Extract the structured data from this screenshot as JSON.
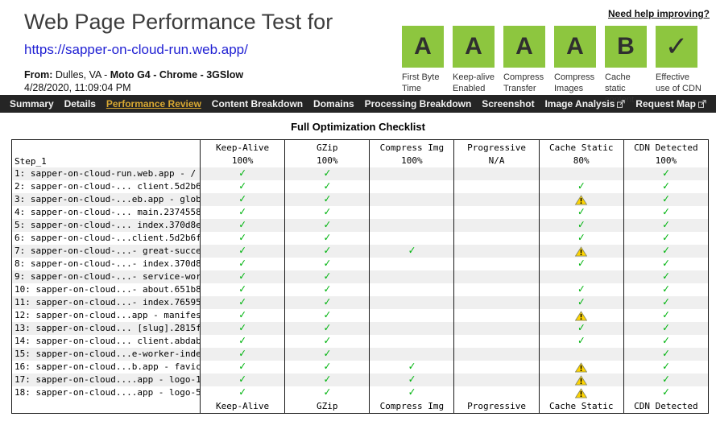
{
  "header": {
    "title": "Web Page Performance Test for",
    "url": "https://sapper-on-cloud-run.web.app/",
    "from_label": "From:",
    "from_location": "Dulles, VA -",
    "from_details": "Moto G4 - Chrome - 3GSlow",
    "timestamp": "4/28/2020, 11:09:04 PM",
    "help_link": "Need help improving?"
  },
  "grades": [
    {
      "grade": "A",
      "label": "First Byte Time",
      "is_check": false
    },
    {
      "grade": "A",
      "label": "Keep-alive Enabled",
      "is_check": false
    },
    {
      "grade": "A",
      "label": "Compress Transfer",
      "is_check": false
    },
    {
      "grade": "A",
      "label": "Compress Images",
      "is_check": false
    },
    {
      "grade": "B",
      "label": "Cache static content",
      "is_check": false
    },
    {
      "grade": "✓",
      "label": "Effective use of CDN",
      "is_check": true
    }
  ],
  "nav": {
    "items": [
      {
        "label": "Summary",
        "active": false,
        "external": false
      },
      {
        "label": "Details",
        "active": false,
        "external": false
      },
      {
        "label": "Performance Review",
        "active": true,
        "external": false
      },
      {
        "label": "Content Breakdown",
        "active": false,
        "external": false
      },
      {
        "label": "Domains",
        "active": false,
        "external": false
      },
      {
        "label": "Processing Breakdown",
        "active": false,
        "external": false
      },
      {
        "label": "Screenshot",
        "active": false,
        "external": false
      },
      {
        "label": "Image Analysis",
        "active": false,
        "external": true
      },
      {
        "label": "Request Map",
        "active": false,
        "external": true
      }
    ]
  },
  "checklist": {
    "title": "Full Optimization Checklist",
    "step_label": "Step_1",
    "columns": [
      {
        "key": "keep-alive",
        "label": "Keep-Alive",
        "score": "100%"
      },
      {
        "key": "gzip",
        "label": "GZip",
        "score": "100%"
      },
      {
        "key": "compress-img",
        "label": "Compress Img",
        "score": "100%"
      },
      {
        "key": "progressive",
        "label": "Progressive",
        "score": "N/A"
      },
      {
        "key": "cache-static",
        "label": "Cache Static",
        "score": "80%"
      },
      {
        "key": "cdn-detected",
        "label": "CDN Detected",
        "score": "100%"
      }
    ],
    "rows": [
      {
        "name": "1: sapper-on-cloud-run.web.app - /",
        "cells": [
          "check",
          "check",
          "",
          "",
          "",
          "check"
        ]
      },
      {
        "name": "2: sapper-on-cloud-... client.5d2b6f92.js",
        "cells": [
          "check",
          "check",
          "",
          "",
          "check",
          "check"
        ]
      },
      {
        "name": "3: sapper-on-cloud-...eb.app - global.css",
        "cells": [
          "check",
          "check",
          "",
          "",
          "warn",
          "check"
        ]
      },
      {
        "name": "4: sapper-on-cloud-... main.237455804.css",
        "cells": [
          "check",
          "check",
          "",
          "",
          "check",
          "check"
        ]
      },
      {
        "name": "5: sapper-on-cloud-... index.370d8e38.css",
        "cells": [
          "check",
          "check",
          "",
          "",
          "check",
          "check"
        ]
      },
      {
        "name": "6: sapper-on-cloud-...client.5d2b6f92.css",
        "cells": [
          "check",
          "check",
          "",
          "",
          "check",
          "check"
        ]
      },
      {
        "name": "7: sapper-on-cloud-...- great-success.png",
        "cells": [
          "check",
          "check",
          "check",
          "",
          "warn",
          "check"
        ]
      },
      {
        "name": "8: sapper-on-cloud-...- index.370d8e38.js",
        "cells": [
          "check",
          "check",
          "",
          "",
          "check",
          "check"
        ]
      },
      {
        "name": "9: sapper-on-cloud-...- service-worker.js",
        "cells": [
          "check",
          "check",
          "",
          "",
          "",
          "check"
        ]
      },
      {
        "name": "10: sapper-on-cloud...- about.651b8579.js",
        "cells": [
          "check",
          "check",
          "",
          "",
          "check",
          "check"
        ]
      },
      {
        "name": "11: sapper-on-cloud...- index.7659535b.js",
        "cells": [
          "check",
          "check",
          "",
          "",
          "check",
          "check"
        ]
      },
      {
        "name": "12: sapper-on-cloud...app - manifest.json",
        "cells": [
          "check",
          "check",
          "",
          "",
          "warn",
          "check"
        ]
      },
      {
        "name": "13: sapper-on-cloud... [slug].2815f748.js",
        "cells": [
          "check",
          "check",
          "",
          "",
          "check",
          "check"
        ]
      },
      {
        "name": "14: sapper-on-cloud... client.abdab4ce.js",
        "cells": [
          "check",
          "check",
          "",
          "",
          "check",
          "check"
        ]
      },
      {
        "name": "15: sapper-on-cloud...e-worker-index.html",
        "cells": [
          "check",
          "check",
          "",
          "",
          "",
          "check"
        ]
      },
      {
        "name": "16: sapper-on-cloud...b.app - favicon.png",
        "cells": [
          "check",
          "check",
          "check",
          "",
          "warn",
          "check"
        ]
      },
      {
        "name": "17: sapper-on-cloud....app - logo-192.png",
        "cells": [
          "check",
          "check",
          "check",
          "",
          "warn",
          "check"
        ]
      },
      {
        "name": "18: sapper-on-cloud....app - logo-512.png",
        "cells": [
          "check",
          "check",
          "check",
          "",
          "warn",
          "check"
        ]
      }
    ]
  },
  "icons": {
    "check_glyph": "✓"
  },
  "colors": {
    "grade_green": "#8dc63f",
    "check_green": "#00b40f",
    "warn_yellow": "#ffd400",
    "nav_bg": "#252525",
    "nav_active_gold": "#d8a832",
    "link_blue": "#1f1fd3",
    "stripe_gray": "#efefef"
  }
}
